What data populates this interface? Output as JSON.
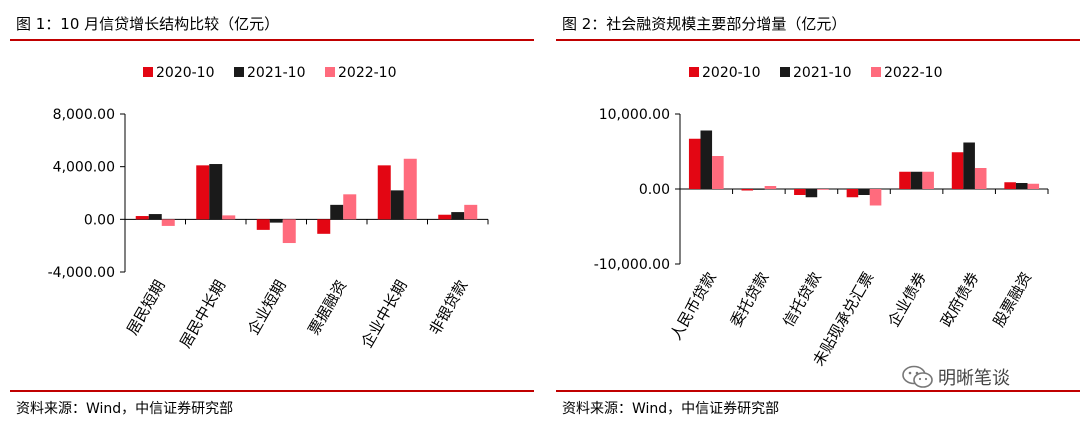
{
  "figures": [
    {
      "title": "图 1：10 月信贷增长结构比较（亿元）",
      "source": "资料来源：Wind，中信证券研究部"
    },
    {
      "title": "图 2：社会融资规模主要部分增量（亿元）",
      "source": "资料来源：Wind，中信证券研究部"
    }
  ],
  "watermark": {
    "text": "明晰笔谈",
    "icon": "wechat-icon"
  },
  "chart_data": [
    {
      "type": "bar",
      "title": "图 1：10 月信贷增长结构比较（亿元）",
      "categories": [
        "居民短期",
        "居民中长期",
        "企业短期",
        "票据融资",
        "企业中长期",
        "非银贷款"
      ],
      "series": [
        {
          "name": "2020-10",
          "color": "#e30613",
          "values": [
            250,
            4100,
            -800,
            -1100,
            4100,
            350
          ]
        },
        {
          "name": "2021-10",
          "color": "#1a1a1a",
          "values": [
            400,
            4200,
            -250,
            1100,
            2200,
            550
          ]
        },
        {
          "name": "2022-10",
          "color": "#ff6b7d",
          "values": [
            -500,
            300,
            -1800,
            1900,
            4600,
            1100
          ]
        }
      ],
      "y_ticks": [
        "8,000.00",
        "4,000.00",
        "0.00",
        "-4,000.00"
      ],
      "ylim": [
        -4000,
        8000
      ],
      "xlabel": "",
      "ylabel": "",
      "legend": "top",
      "grid": false
    },
    {
      "type": "bar",
      "title": "图 2：社会融资规模主要部分增量（亿元）",
      "categories": [
        "人民币贷款",
        "委托贷款",
        "信托贷款",
        "未贴现承兑汇票",
        "企业债券",
        "政府债券",
        "股票融资"
      ],
      "series": [
        {
          "name": "2020-10",
          "color": "#e30613",
          "values": [
            6700,
            -200,
            -800,
            -1100,
            2300,
            4900,
            900
          ]
        },
        {
          "name": "2021-10",
          "color": "#1a1a1a",
          "values": [
            7800,
            -100,
            -1100,
            -800,
            2300,
            6200,
            800
          ]
        },
        {
          "name": "2022-10",
          "color": "#ff6b7d",
          "values": [
            4400,
            400,
            -100,
            -2200,
            2300,
            2800,
            700
          ]
        }
      ],
      "y_ticks": [
        "10,000.00",
        "0.00",
        "-10,000.00"
      ],
      "ylim": [
        -10000,
        10000
      ],
      "xlabel": "",
      "ylabel": "",
      "legend": "top",
      "grid": false
    }
  ]
}
